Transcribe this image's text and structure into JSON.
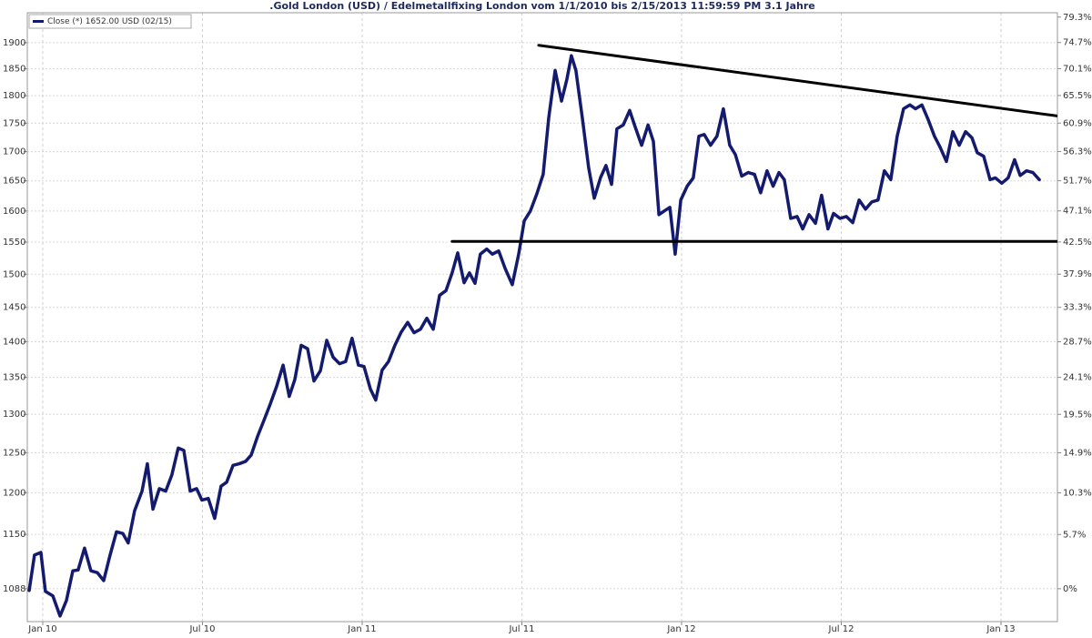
{
  "chart_data": {
    "type": "line",
    "title": ".Gold London (USD) / Edelmetallfixing London vom 1/1/2010 bis 2/15/2013 11:59:59 PM 3.1 Jahre",
    "legend": "upper left",
    "grid": true,
    "log_scale": true,
    "y2_log_scale": true,
    "xlim": [
      -0.58,
      38.12
    ],
    "xticks": [
      {
        "value": 0,
        "label": "Jan 10"
      },
      {
        "value": 6,
        "label": "Jul 10"
      },
      {
        "value": 12,
        "label": "Jan 11"
      },
      {
        "value": 18,
        "label": "Jul 11"
      },
      {
        "value": 24,
        "label": "Jan 12"
      },
      {
        "value": 30,
        "label": "Jul 12"
      },
      {
        "value": 36,
        "label": "Jan 13"
      }
    ],
    "ylim": [
      1052,
      1959
    ],
    "yticks": [
      1088,
      1150,
      1200,
      1250,
      1300,
      1350,
      1400,
      1450,
      1500,
      1550,
      1600,
      1650,
      1700,
      1750,
      1800,
      1850,
      1900
    ],
    "y2lim": [
      -3.3,
      80.1
    ],
    "y2ticks": [
      {
        "value": 0,
        "label": "0%"
      },
      {
        "value": 5.7,
        "label": "5.7%"
      },
      {
        "value": 10.3,
        "label": "10.3%"
      },
      {
        "value": 14.9,
        "label": "14.9%"
      },
      {
        "value": 19.5,
        "label": "19.5%"
      },
      {
        "value": 24.1,
        "label": "24.1%"
      },
      {
        "value": 28.7,
        "label": "28.7%"
      },
      {
        "value": 33.3,
        "label": "33.3%"
      },
      {
        "value": 37.9,
        "label": "37.9%"
      },
      {
        "value": 42.5,
        "label": "42.5%"
      },
      {
        "value": 47.1,
        "label": "47.1%"
      },
      {
        "value": 51.7,
        "label": "51.7%"
      },
      {
        "value": 56.3,
        "label": "56.3%"
      },
      {
        "value": 60.9,
        "label": "60.9%"
      },
      {
        "value": 65.5,
        "label": "65.5%"
      },
      {
        "value": 70.1,
        "label": "70.1%"
      },
      {
        "value": 74.7,
        "label": "74.7%"
      },
      {
        "value": 79.3,
        "label": "79.3%"
      }
    ],
    "x": [
      -0.51,
      -0.31,
      -0.07,
      0.1,
      0.38,
      0.65,
      0.89,
      1.13,
      1.33,
      1.57,
      1.81,
      2.05,
      2.29,
      2.53,
      2.77,
      3.01,
      3.21,
      3.45,
      3.73,
      3.93,
      4.14,
      4.38,
      4.62,
      4.85,
      5.09,
      5.3,
      5.54,
      5.78,
      5.98,
      6.22,
      6.46,
      6.7,
      6.91,
      7.15,
      7.38,
      7.62,
      7.83,
      8.07,
      8.31,
      8.55,
      8.79,
      9.03,
      9.26,
      9.47,
      9.71,
      9.95,
      10.19,
      10.43,
      10.67,
      10.91,
      11.15,
      11.38,
      11.62,
      11.86,
      12.07,
      12.31,
      12.51,
      12.75,
      12.99,
      13.23,
      13.47,
      13.71,
      13.95,
      14.19,
      14.43,
      14.67,
      14.91,
      15.15,
      15.38,
      15.59,
      15.83,
      16.03,
      16.24,
      16.44,
      16.68,
      16.89,
      17.13,
      17.37,
      17.64,
      17.88,
      18.09,
      18.32,
      18.56,
      18.8,
      19.01,
      19.25,
      19.49,
      19.69,
      19.86,
      20.03,
      20.27,
      20.51,
      20.72,
      20.96,
      21.16,
      21.37,
      21.57,
      21.81,
      22.05,
      22.26,
      22.5,
      22.74,
      22.94,
      23.15,
      23.35,
      23.56,
      23.76,
      23.97,
      24.21,
      24.44,
      24.65,
      24.85,
      25.09,
      25.33,
      25.57,
      25.81,
      26.02,
      26.26,
      26.5,
      26.74,
      26.97,
      27.21,
      27.44,
      27.66,
      27.86,
      28.1,
      28.34,
      28.55,
      28.79,
      29.03,
      29.26,
      29.5,
      29.71,
      29.95,
      30.19,
      30.43,
      30.67,
      30.91,
      31.15,
      31.38,
      31.62,
      31.86,
      32.1,
      32.34,
      32.58,
      32.79,
      33.03,
      33.26,
      33.5,
      33.71,
      33.95,
      34.19,
      34.43,
      34.67,
      34.91,
      35.11,
      35.35,
      35.59,
      35.79,
      36.03,
      36.27,
      36.51,
      36.72,
      36.96,
      37.2,
      37.44
    ],
    "series": [
      {
        "name": "Close (*) 1652.00 USD (02/15)",
        "color": "#141a6e",
        "values": [
          1086,
          1126,
          1129,
          1085,
          1080,
          1058,
          1075,
          1108,
          1109,
          1134,
          1108,
          1106,
          1097,
          1126,
          1153,
          1151,
          1140,
          1178,
          1202,
          1236,
          1180,
          1205,
          1202,
          1222,
          1256,
          1253,
          1202,
          1205,
          1191,
          1193,
          1169,
          1208,
          1213,
          1234,
          1236,
          1239,
          1247,
          1271,
          1292,
          1314,
          1338,
          1367,
          1324,
          1347,
          1395,
          1390,
          1345,
          1359,
          1402,
          1378,
          1369,
          1372,
          1405,
          1367,
          1365,
          1334,
          1319,
          1360,
          1372,
          1395,
          1414,
          1428,
          1413,
          1418,
          1434,
          1418,
          1468,
          1475,
          1502,
          1533,
          1487,
          1502,
          1486,
          1531,
          1539,
          1531,
          1536,
          1509,
          1484,
          1531,
          1584,
          1600,
          1628,
          1661,
          1760,
          1847,
          1790,
          1830,
          1875,
          1847,
          1760,
          1672,
          1621,
          1656,
          1676,
          1644,
          1740,
          1747,
          1773,
          1743,
          1711,
          1747,
          1718,
          1594,
          1600,
          1606,
          1531,
          1618,
          1641,
          1655,
          1727,
          1730,
          1711,
          1727,
          1776,
          1711,
          1695,
          1658,
          1664,
          1661,
          1630,
          1667,
          1641,
          1664,
          1652,
          1588,
          1591,
          1571,
          1594,
          1580,
          1626,
          1571,
          1596,
          1588,
          1591,
          1581,
          1618,
          1603,
          1615,
          1618,
          1667,
          1652,
          1727,
          1776,
          1783,
          1776,
          1783,
          1757,
          1727,
          1708,
          1683,
          1735,
          1711,
          1735,
          1724,
          1698,
          1692,
          1652,
          1655,
          1646,
          1655,
          1686,
          1659,
          1667,
          1664,
          1652
        ]
      }
    ],
    "trend_lines": [
      {
        "color": "#000000",
        "x": [
          18.63,
          38.12
        ],
        "values": [
          1895,
          1763
        ]
      },
      {
        "color": "#000000",
        "x": [
          15.38,
          38.12
        ],
        "values": [
          1551,
          1551
        ]
      }
    ]
  }
}
